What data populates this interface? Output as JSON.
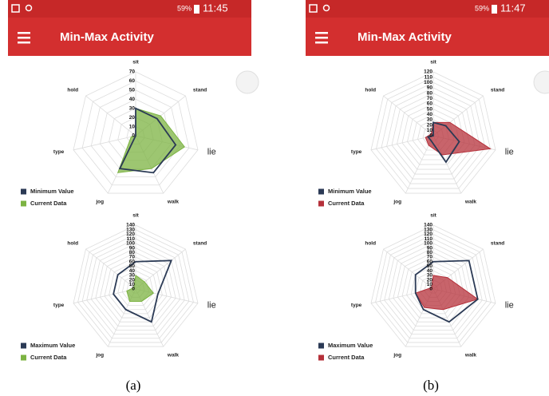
{
  "screens": [
    {
      "battery": "59%",
      "time": "11:45",
      "app_title": "Min-Max Activity",
      "caption": "(a)"
    },
    {
      "battery": "59%",
      "time": "11:47",
      "app_title": "Min-Max Activity",
      "caption": "(b)"
    }
  ],
  "chart_data": [
    {
      "type": "radar",
      "categories": [
        "sit",
        "stand",
        "lie",
        "walk",
        "jog",
        "type",
        "hold"
      ],
      "ylim": [
        0,
        70
      ],
      "yticks": [
        0,
        10,
        20,
        30,
        40,
        50,
        60,
        70
      ],
      "grid": true,
      "series": [
        {
          "name": "Minimum Value",
          "color": "#2b3a55",
          "values": [
            30,
            30,
            45,
            45,
            40,
            0,
            0
          ]
        },
        {
          "name": "Current Data",
          "color": "#7cb342",
          "values": [
            30,
            35,
            55,
            40,
            45,
            5,
            0
          ]
        }
      ]
    },
    {
      "type": "radar",
      "categories": [
        "sit",
        "stand",
        "lie",
        "walk",
        "jog",
        "type",
        "hold"
      ],
      "ylim": [
        0,
        140
      ],
      "yticks": [
        0,
        10,
        20,
        30,
        40,
        50,
        60,
        70,
        80,
        90,
        100,
        110,
        120,
        130,
        140
      ],
      "grid": true,
      "series": [
        {
          "name": "Maximum Value",
          "color": "#2b3a55",
          "values": [
            60,
            100,
            50,
            80,
            50,
            50,
            50
          ]
        },
        {
          "name": "Current Data",
          "color": "#7cb342",
          "values": [
            30,
            25,
            40,
            30,
            30,
            20,
            5
          ]
        }
      ]
    },
    {
      "type": "radar",
      "categories": [
        "sit",
        "stand",
        "lie",
        "walk",
        "jog",
        "type",
        "hold"
      ],
      "ylim": [
        0,
        120
      ],
      "yticks": [
        0,
        10,
        20,
        30,
        40,
        50,
        60,
        70,
        80,
        90,
        100,
        110,
        120
      ],
      "grid": true,
      "series": [
        {
          "name": "Minimum Value",
          "color": "#2b3a55",
          "values": [
            25,
            30,
            50,
            55,
            10,
            10,
            0
          ]
        },
        {
          "name": "Current Data",
          "color": "#b5303a",
          "values": [
            25,
            40,
            110,
            40,
            20,
            15,
            5
          ]
        }
      ]
    },
    {
      "type": "radar",
      "categories": [
        "sit",
        "stand",
        "lie",
        "walk",
        "jog",
        "type",
        "hold"
      ],
      "ylim": [
        0,
        140
      ],
      "yticks": [
        0,
        10,
        20,
        30,
        40,
        50,
        60,
        70,
        80,
        90,
        100,
        110,
        120,
        130,
        140
      ],
      "grid": true,
      "series": [
        {
          "name": "Maximum Value",
          "color": "#2b3a55",
          "values": [
            60,
            100,
            100,
            80,
            50,
            40,
            50
          ]
        },
        {
          "name": "Current Data",
          "color": "#b5303a",
          "values": [
            30,
            40,
            100,
            50,
            45,
            40,
            5
          ]
        }
      ]
    }
  ]
}
